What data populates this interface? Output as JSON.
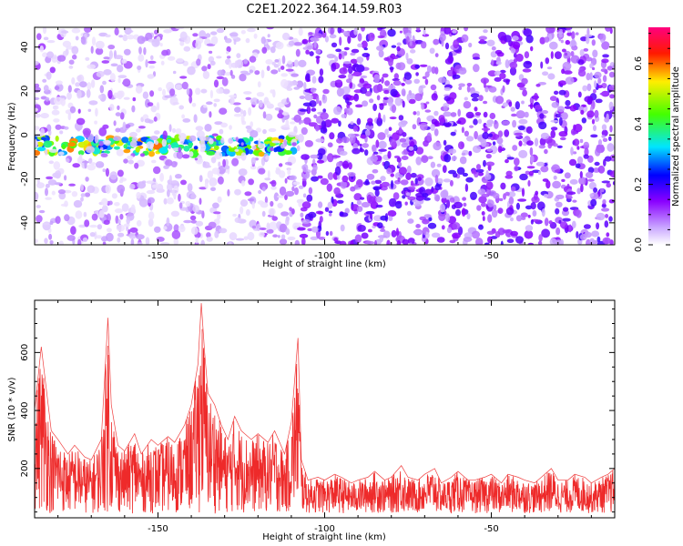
{
  "title": "C2E1.2022.364.14.59.R03",
  "colors": {
    "snr_line": "#ee2a2a",
    "frame": "#000000",
    "low_amplitude": "#d8c8f8",
    "mid_amplitude": "#7a00f5"
  },
  "chart_data": [
    {
      "type": "heatmap",
      "title": "C2E1.2022.364.14.59.R03",
      "xlabel": "Height of straight line (km)",
      "ylabel": "Frequency (Hz)",
      "xlim": [
        -187,
        -13
      ],
      "ylim": [
        -50,
        49
      ],
      "xticks": [
        -150,
        -100,
        -50
      ],
      "yticks": [
        -40,
        -20,
        0,
        20,
        40
      ],
      "colorbar": {
        "label": "Normalized spectral amplitude",
        "range": [
          0.0,
          0.72
        ],
        "ticks": [
          "0.0",
          "0.2",
          "0.4",
          "0.6"
        ],
        "colormap": "white-violet-blue-cyan-green-yellow-red-magenta"
      },
      "features": [
        {
          "description": "strong band",
          "x_range": [
            -187,
            -108
          ],
          "y_center": -5,
          "y_halfwidth": 4,
          "amplitude_range": [
            0.25,
            0.6
          ]
        },
        {
          "description": "sparse background",
          "x_range": [
            -187,
            -107
          ],
          "amplitude_range": [
            0.02,
            0.12
          ]
        },
        {
          "description": "dense background",
          "x_range": [
            -107,
            -13
          ],
          "amplitude_range": [
            0.05,
            0.2
          ]
        }
      ]
    },
    {
      "type": "line",
      "xlabel": "Height of straight line (km)",
      "ylabel": "SNR (10 * v/v)",
      "xlim": [
        -187,
        -13
      ],
      "ylim": [
        30,
        780
      ],
      "xticks": [
        -150,
        -100,
        -50
      ],
      "yticks": [
        200,
        400,
        600
      ],
      "series": [
        {
          "x": [
            -187,
            -185,
            -182,
            -180,
            -177,
            -175,
            -172,
            -170,
            -167,
            -165,
            -164,
            -162,
            -160,
            -157,
            -155,
            -152,
            -150,
            -147,
            -145,
            -142,
            -140,
            -138,
            -137,
            -136,
            -135,
            -133,
            -131,
            -129,
            -127,
            -125,
            -122,
            -120,
            -117,
            -115,
            -112,
            -110,
            -108,
            -107,
            -105,
            -102,
            -100,
            -97,
            -95,
            -92,
            -90,
            -87,
            -85,
            -82,
            -80,
            -77,
            -75,
            -72,
            -70,
            -67,
            -65,
            -62,
            -60,
            -57,
            -55,
            -52,
            -50,
            -47,
            -45,
            -42,
            -40,
            -37,
            -35,
            -32,
            -30,
            -27,
            -25,
            -22,
            -20,
            -17,
            -15,
            -13
          ],
          "values": [
            400,
            620,
            330,
            300,
            250,
            280,
            240,
            230,
            300,
            720,
            420,
            280,
            260,
            320,
            250,
            300,
            280,
            310,
            290,
            350,
            420,
            560,
            770,
            600,
            460,
            420,
            350,
            300,
            380,
            330,
            300,
            320,
            290,
            330,
            250,
            360,
            650,
            230,
            160,
            170,
            160,
            180,
            170,
            150,
            160,
            170,
            190,
            160,
            170,
            210,
            170,
            160,
            180,
            200,
            150,
            170,
            190,
            160,
            160,
            170,
            180,
            150,
            180,
            170,
            160,
            150,
            170,
            200,
            160,
            160,
            180,
            170,
            150,
            170,
            180,
            200
          ]
        }
      ]
    }
  ]
}
